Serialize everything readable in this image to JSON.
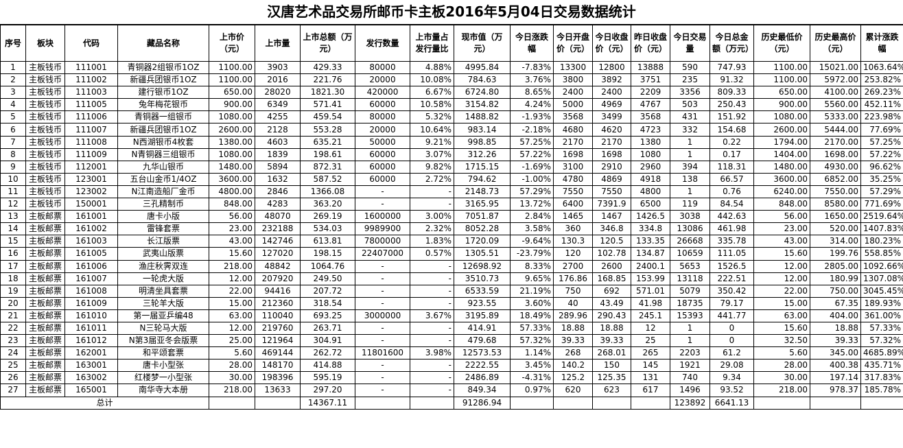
{
  "title": "汉唐艺术品交易所邮币卡主板2016年5月04日交易数据统计",
  "headers": [
    "序号",
    "板块",
    "代码",
    "藏品名称",
    "上市价（元）",
    "上市量",
    "上市总额（万元）",
    "发行数量",
    "上市量占发行量比",
    "现市值（万元）",
    "今日涨跌幅",
    "今日开盘价（元）",
    "今日收盘价（元）",
    "昨日收盘价（元）",
    "今日交易量",
    "今日总金额（万元）",
    "历史最低价（元）",
    "历史最高价（元）",
    "累计涨跌幅"
  ],
  "rows": [
    [
      "1",
      "主板钱币",
      "111001",
      "青铜器2组银币1OZ",
      "1100.00",
      "3903",
      "429.33",
      "80000",
      "4.88%",
      "4995.84",
      "-7.83%",
      "13300",
      "12800",
      "13888",
      "590",
      "747.93",
      "1100.00",
      "15021.00",
      "1063.64%"
    ],
    [
      "2",
      "主板钱币",
      "111002",
      "新疆兵团银币1OZ",
      "1100.00",
      "2016",
      "221.76",
      "20000",
      "10.08%",
      "784.63",
      "3.76%",
      "3800",
      "3892",
      "3751",
      "235",
      "91.32",
      "1100.00",
      "5972.00",
      "253.82%"
    ],
    [
      "3",
      "主板钱币",
      "111003",
      "建行银币1OZ",
      "650.00",
      "28020",
      "1821.30",
      "420000",
      "6.67%",
      "6724.80",
      "8.65%",
      "2400",
      "2400",
      "2209",
      "3356",
      "809.33",
      "650.00",
      "4100.00",
      "269.23%"
    ],
    [
      "4",
      "主板钱币",
      "111005",
      "兔年梅花银币",
      "900.00",
      "6349",
      "571.41",
      "60000",
      "10.58%",
      "3154.82",
      "4.24%",
      "5000",
      "4969",
      "4767",
      "503",
      "250.43",
      "900.00",
      "5560.00",
      "452.11%"
    ],
    [
      "5",
      "主板钱币",
      "111006",
      "青铜器一组银币",
      "1080.00",
      "4255",
      "459.54",
      "80000",
      "5.32%",
      "1488.82",
      "-1.93%",
      "3568",
      "3499",
      "3568",
      "431",
      "151.92",
      "1080.00",
      "5333.00",
      "223.98%"
    ],
    [
      "6",
      "主板钱币",
      "111007",
      "新疆兵团银币1OZ",
      "2600.00",
      "2128",
      "553.28",
      "20000",
      "10.64%",
      "983.14",
      "-2.18%",
      "4680",
      "4620",
      "4723",
      "332",
      "154.68",
      "2600.00",
      "5444.00",
      "77.69%"
    ],
    [
      "7",
      "主板钱币",
      "111008",
      "N西湖银币4枚套",
      "1380.00",
      "4603",
      "635.21",
      "50000",
      "9.21%",
      "998.85",
      "57.25%",
      "2170",
      "2170",
      "1380",
      "1",
      "0.22",
      "1794.00",
      "2170.00",
      "57.25%"
    ],
    [
      "8",
      "主板钱币",
      "111009",
      "N青铜器三组银币",
      "1080.00",
      "1839",
      "198.61",
      "60000",
      "3.07%",
      "312.26",
      "57.22%",
      "1698",
      "1698",
      "1080",
      "1",
      "0.17",
      "1404.00",
      "1698.00",
      "57.22%"
    ],
    [
      "9",
      "主板钱币",
      "112001",
      "九华山银币",
      "1480.00",
      "5894",
      "872.31",
      "60000",
      "9.82%",
      "1715.15",
      "-1.69%",
      "3100",
      "2910",
      "2960",
      "394",
      "118.31",
      "1480.00",
      "4930.00",
      "96.62%"
    ],
    [
      "10",
      "主板钱币",
      "123001",
      "五台山金币1/4OZ",
      "3600.00",
      "1632",
      "587.52",
      "60000",
      "2.72%",
      "794.62",
      "-1.00%",
      "4780",
      "4869",
      "4918",
      "138",
      "66.57",
      "3600.00",
      "6852.00",
      "35.25%"
    ],
    [
      "11",
      "主板钱币",
      "123002",
      "N江南造船厂金币",
      "4800.00",
      "2846",
      "1366.08",
      "-",
      "-",
      "2148.73",
      "57.29%",
      "7550",
      "7550",
      "4800",
      "1",
      "0.76",
      "6240.00",
      "7550.00",
      "57.29%"
    ],
    [
      "12",
      "主板钱币",
      "150001",
      "三孔精制币",
      "848.00",
      "4283",
      "363.20",
      "-",
      "-",
      "3165.95",
      "13.72%",
      "6400",
      "7391.9",
      "6500",
      "119",
      "84.54",
      "848.00",
      "8580.00",
      "771.69%"
    ],
    [
      "13",
      "主板邮票",
      "161001",
      "唐卡小版",
      "56.00",
      "48070",
      "269.19",
      "1600000",
      "3.00%",
      "7051.87",
      "2.84%",
      "1465",
      "1467",
      "1426.5",
      "3038",
      "442.63",
      "56.00",
      "1650.00",
      "2519.64%"
    ],
    [
      "14",
      "主板邮票",
      "161002",
      "雷锋套票",
      "23.00",
      "232188",
      "534.03",
      "9989900",
      "2.32%",
      "8052.28",
      "3.58%",
      "360",
      "346.8",
      "334.8",
      "13086",
      "461.98",
      "23.00",
      "520.00",
      "1407.83%"
    ],
    [
      "15",
      "主板邮票",
      "161003",
      "长江版票",
      "43.00",
      "142746",
      "613.81",
      "7800000",
      "1.83%",
      "1720.09",
      "-9.64%",
      "130.3",
      "120.5",
      "133.35",
      "26668",
      "335.78",
      "43.00",
      "314.00",
      "180.23%"
    ],
    [
      "16",
      "主板邮票",
      "161005",
      "武夷山版票",
      "15.60",
      "127020",
      "198.15",
      "22407000",
      "0.57%",
      "1305.51",
      "-23.79%",
      "120",
      "102.78",
      "134.87",
      "10659",
      "111.05",
      "15.60",
      "199.76",
      "558.85%"
    ],
    [
      "17",
      "主板邮票",
      "161006",
      "渔庄秋霁双连",
      "218.00",
      "48842",
      "1064.76",
      "-",
      "-",
      "12698.92",
      "8.33%",
      "2700",
      "2600",
      "2400.1",
      "5653",
      "1526.5",
      "12.00",
      "2805.00",
      "1092.66%"
    ],
    [
      "18",
      "主板邮票",
      "161007",
      "一轮虎大版",
      "12.00",
      "207920",
      "249.50",
      "-",
      "-",
      "3510.73",
      "9.65%",
      "176.86",
      "168.85",
      "153.99",
      "13118",
      "222.51",
      "12.00",
      "180.99",
      "1307.08%"
    ],
    [
      "19",
      "主板邮票",
      "161008",
      "明清坐具套票",
      "22.00",
      "94416",
      "207.72",
      "-",
      "-",
      "6533.59",
      "21.19%",
      "750",
      "692",
      "571.01",
      "5079",
      "350.42",
      "22.00",
      "750.00",
      "3045.45%"
    ],
    [
      "20",
      "主板邮票",
      "161009",
      "三轮羊大版",
      "15.00",
      "212360",
      "318.54",
      "-",
      "-",
      "923.55",
      "3.60%",
      "40",
      "43.49",
      "41.98",
      "18735",
      "79.17",
      "15.00",
      "67.35",
      "189.93%"
    ],
    [
      "21",
      "主板邮票",
      "161010",
      "第一届亚乒编48",
      "63.00",
      "110040",
      "693.25",
      "3000000",
      "3.67%",
      "3195.89",
      "18.49%",
      "289.96",
      "290.43",
      "245.1",
      "15393",
      "441.77",
      "63.00",
      "404.00",
      "361.00%"
    ],
    [
      "22",
      "主板邮票",
      "161011",
      "N三轮马大版",
      "12.00",
      "219760",
      "263.71",
      "-",
      "-",
      "414.91",
      "57.33%",
      "18.88",
      "18.88",
      "12",
      "1",
      "0",
      "15.60",
      "18.88",
      "57.33%"
    ],
    [
      "23",
      "主板邮票",
      "161012",
      "N第3届亚冬会版票",
      "25.00",
      "121964",
      "304.91",
      "-",
      "-",
      "479.68",
      "57.32%",
      "39.33",
      "39.33",
      "25",
      "1",
      "0",
      "32.50",
      "39.33",
      "57.32%"
    ],
    [
      "24",
      "主板邮票",
      "162001",
      "和平颂套票",
      "5.60",
      "469144",
      "262.72",
      "11801600",
      "3.98%",
      "12573.53",
      "1.14%",
      "268",
      "268.01",
      "265",
      "2203",
      "61.2",
      "5.60",
      "345.00",
      "4685.89%"
    ],
    [
      "25",
      "主板邮票",
      "163001",
      "唐卡小型张",
      "28.00",
      "148170",
      "414.88",
      "-",
      "-",
      "2222.55",
      "3.45%",
      "140.2",
      "150",
      "145",
      "1921",
      "29.08",
      "28.00",
      "400.38",
      "435.71%"
    ],
    [
      "26",
      "主板邮票",
      "163002",
      "红楼梦一小型张",
      "30.00",
      "198396",
      "595.19",
      "-",
      "-",
      "2486.89",
      "-4.31%",
      "125.2",
      "125.35",
      "131",
      "740",
      "9.34",
      "30.00",
      "197.14",
      "317.83%"
    ],
    [
      "27",
      "主板邮票",
      "165001",
      "南华寺大本册",
      "218.00",
      "13633",
      "297.20",
      "-",
      "-",
      "849.34",
      "0.97%",
      "620",
      "623",
      "617",
      "1496",
      "93.52",
      "218.00",
      "978.37",
      "185.78%"
    ]
  ],
  "total": {
    "label": "总计",
    "total_amount": "14367.11",
    "market_value": "91286.94",
    "volume": "123892",
    "turnover": "6641.13"
  }
}
